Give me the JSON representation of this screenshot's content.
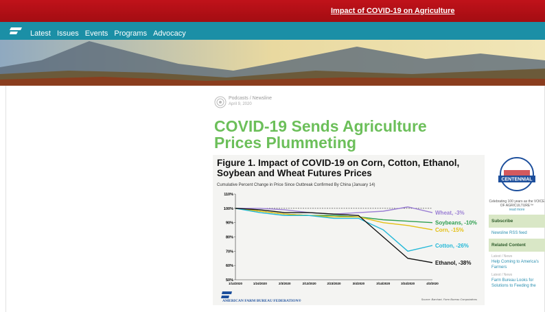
{
  "top_bar": {
    "link": "Impact of COVID-19 on Agriculture"
  },
  "nav": [
    "Latest",
    "Issues",
    "Events",
    "Programs",
    "Advocacy"
  ],
  "article": {
    "breadcrumb": "Podcasts / Newsline",
    "date": "April 9, 2020",
    "title": "COVID-19 Sends Agriculture Prices Plummeting"
  },
  "chart_data": {
    "type": "line",
    "title": "Figure 1. Impact of COVID-19 on Corn, Cotton, Ethanol, Soybean and Wheat Futures Prices",
    "subtitle": "Cumulative Percent Change in Price Since Outbreak Confirmed By China (January 14)",
    "x": [
      "1/14/2020",
      "1/24/2020",
      "2/3/2020",
      "2/13/2020",
      "2/23/2020",
      "3/4/2020",
      "3/14/2020",
      "3/24/2020",
      "4/3/2020"
    ],
    "series": [
      {
        "name": "Wheat, -3%",
        "color": "#9b7fd4",
        "values": [
          100,
          100,
          99,
          97,
          96,
          97,
          98,
          101,
          97
        ]
      },
      {
        "name": "Soybeans, -10%",
        "color": "#2e9e4f",
        "values": [
          100,
          98,
          96,
          95,
          95,
          94,
          92,
          91,
          90
        ]
      },
      {
        "name": "Corn, -15%",
        "color": "#e3bf12",
        "values": [
          100,
          98,
          96,
          95,
          94,
          94,
          90,
          88,
          85
        ]
      },
      {
        "name": "Cotton, -26%",
        "color": "#22b8d8",
        "values": [
          100,
          97,
          95,
          95,
          93,
          93,
          85,
          70,
          74
        ]
      },
      {
        "name": "Ethanol, -38%",
        "color": "#111111",
        "values": [
          100,
          99,
          97,
          97,
          96,
          95,
          80,
          65,
          62
        ]
      }
    ],
    "ylim": [
      50,
      110
    ],
    "yticks": [
      {
        "value": 50,
        "label": "50%"
      },
      {
        "value": 60,
        "label": "60%"
      },
      {
        "value": 70,
        "label": "70%"
      },
      {
        "value": 80,
        "label": "80%"
      },
      {
        "value": 90,
        "label": "90%"
      },
      {
        "value": 100,
        "label": "100%"
      },
      {
        "value": 110,
        "label": "110%"
      }
    ],
    "reference_line": 100,
    "footer": "AMERICAN FARM BUREAU FEDERATION®",
    "source": "Source: Barchart, Farm Bureau Computations"
  },
  "sidebar": {
    "badge": "CENTENNIAL",
    "tagline": "Celebrating 100 years as the VOICE OF AGRICULTURE™",
    "read_more": "read more",
    "subscribe": "Subscribe",
    "rss": "Newsline RSS feed",
    "related": "Related Content",
    "items": [
      {
        "meta": "Latest / News",
        "title": "Help Coming to America's Farmers"
      },
      {
        "meta": "Latest / News",
        "title": "Farm Bureau Looks for Solutions to Feeding the"
      }
    ]
  }
}
